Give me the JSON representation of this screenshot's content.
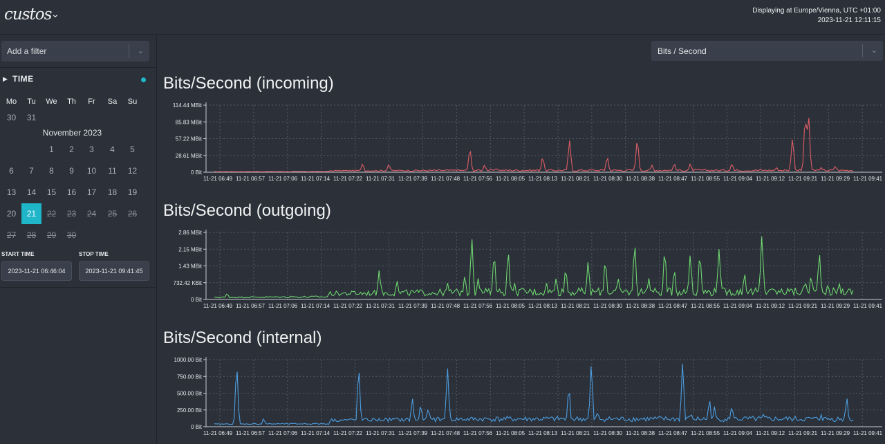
{
  "header": {
    "logo": "custos",
    "timezone": "Displaying at Europe/Vienna, UTC +01:00",
    "now": "2023-11-21 12:11:15"
  },
  "sidebar": {
    "filter_placeholder": "Add a filter",
    "time_label": "TIME",
    "calendar": {
      "weekdays": [
        "Mo",
        "Tu",
        "We",
        "Th",
        "Fr",
        "Sa",
        "Su"
      ],
      "prev_days": [
        "30",
        "31"
      ],
      "month": "November 2023",
      "weeks": [
        [
          "",
          "",
          "1",
          "2",
          "3",
          "4",
          "5"
        ],
        [
          "6",
          "7",
          "8",
          "9",
          "10",
          "11",
          "12"
        ],
        [
          "13",
          "14",
          "15",
          "16",
          "17",
          "18",
          "19"
        ],
        [
          "20",
          "21",
          "22",
          "23",
          "24",
          "25",
          "26"
        ],
        [
          "27",
          "28",
          "29",
          "30",
          "",
          "",
          ""
        ]
      ],
      "selected": "21",
      "future": [
        "22",
        "23",
        "24",
        "25",
        "26",
        "27",
        "28",
        "29",
        "30"
      ]
    },
    "start_label": "START TIME",
    "stop_label": "STOP TIME",
    "start_value": "2023-11-21 06:46:04",
    "stop_value": "2023-11-21 09:41:45"
  },
  "metric_select": {
    "value": "Bits / Second"
  },
  "chart_data": [
    {
      "type": "line",
      "title": "Bits/Second (incoming)",
      "color": "#e05e66",
      "x_ticks": [
        "11-21 06:49",
        "11-21 06:57",
        "11-21 07:06",
        "11-21 07:14",
        "11-21 07:22",
        "11-21 07:31",
        "11-21 07:39",
        "11-21 07:48",
        "11-21 07:56",
        "11-21 08:05",
        "11-21 08:13",
        "11-21 08:21",
        "11-21 08:30",
        "11-21 08:38",
        "11-21 08:47",
        "11-21 08:55",
        "11-21 09:04",
        "11-21 09:12",
        "11-21 09:21",
        "11-21 09:29",
        "11-21 09:41"
      ],
      "y_ticks": [
        "0 Bit",
        "28.61 MBit",
        "57.22 MBit",
        "85.83 MBit",
        "114.44 MBit"
      ],
      "ylim": [
        0,
        114.44
      ],
      "unit": "MBit",
      "baseline": 1.5,
      "noise": 3.5,
      "peaks": [
        [
          0.232,
          14
        ],
        [
          0.273,
          13
        ],
        [
          0.378,
          4
        ],
        [
          0.4,
          39
        ],
        [
          0.423,
          12
        ],
        [
          0.442,
          6
        ],
        [
          0.514,
          25
        ],
        [
          0.556,
          54
        ],
        [
          0.615,
          25
        ],
        [
          0.662,
          55
        ],
        [
          0.685,
          12
        ],
        [
          0.72,
          14
        ],
        [
          0.745,
          14
        ],
        [
          0.81,
          14
        ],
        [
          0.88,
          8
        ],
        [
          0.905,
          57
        ],
        [
          0.925,
          93
        ],
        [
          0.93,
          100
        ],
        [
          0.95,
          8
        ],
        [
          0.972,
          10
        ]
      ]
    },
    {
      "type": "line",
      "title": "Bits/Second (outgoing)",
      "color": "#6fd66f",
      "x_ticks": [
        "11-21 06:49",
        "11-21 06:57",
        "11-21 07:06",
        "11-21 07:14",
        "11-21 07:22",
        "11-21 07:31",
        "11-21 07:39",
        "11-21 07:48",
        "11-21 07:56",
        "11-21 08:05",
        "11-21 08:13",
        "11-21 08:21",
        "11-21 08:30",
        "11-21 08:38",
        "11-21 08:47",
        "11-21 08:55",
        "11-21 09:04",
        "11-21 09:12",
        "11-21 09:21",
        "11-21 09:29",
        "11-21 09:41"
      ],
      "y_ticks": [
        "0 Bit",
        "732.42 KBit",
        "1.43 MBit",
        "2.15 MBit",
        "2.86 MBit"
      ],
      "ylim": [
        0,
        2.86
      ],
      "unit": "MBit",
      "baseline": 0.15,
      "noise": 0.35,
      "peaks": [
        [
          0.02,
          0.25
        ],
        [
          0.12,
          0.15
        ],
        [
          0.18,
          0.25
        ],
        [
          0.22,
          0.35
        ],
        [
          0.258,
          1.25
        ],
        [
          0.286,
          0.8
        ],
        [
          0.365,
          0.7
        ],
        [
          0.392,
          1.0
        ],
        [
          0.403,
          2.6
        ],
        [
          0.413,
          0.9
        ],
        [
          0.438,
          1.9
        ],
        [
          0.46,
          2.0
        ],
        [
          0.47,
          0.7
        ],
        [
          0.52,
          0.7
        ],
        [
          0.535,
          0.9
        ],
        [
          0.55,
          1.3
        ],
        [
          0.585,
          1.6
        ],
        [
          0.612,
          1.65
        ],
        [
          0.632,
          0.9
        ],
        [
          0.658,
          2.35
        ],
        [
          0.68,
          0.9
        ],
        [
          0.705,
          2.05
        ],
        [
          0.72,
          1.25
        ],
        [
          0.745,
          1.9
        ],
        [
          0.76,
          1.9
        ],
        [
          0.79,
          2.15
        ],
        [
          0.83,
          1.1
        ],
        [
          0.857,
          2.7
        ],
        [
          0.87,
          0.5
        ],
        [
          0.898,
          0.5
        ],
        [
          0.925,
          0.75
        ],
        [
          0.934,
          1.0
        ],
        [
          0.947,
          1.95
        ],
        [
          0.96,
          0.6
        ],
        [
          0.978,
          0.7
        ]
      ]
    },
    {
      "type": "line",
      "title": "Bits/Second (internal)",
      "color": "#4d9ee0",
      "x_ticks": [
        "11-21 06:49",
        "11-21 06:57",
        "11-21 07:06",
        "11-21 07:14",
        "11-21 07:22",
        "11-21 07:31",
        "11-21 07:39",
        "11-21 07:48",
        "11-21 07:56",
        "11-21 08:05",
        "11-21 08:13",
        "11-21 08:21",
        "11-21 08:30",
        "11-21 08:38",
        "11-21 08:47",
        "11-21 08:55",
        "11-21 09:04",
        "11-21 09:12",
        "11-21 09:21",
        "11-21 09:29",
        "11-21 09:41"
      ],
      "y_ticks": [
        "0 Bit",
        "250.00 Bit",
        "500.00 Bit",
        "750.00 Bit",
        "1000.00 Bit"
      ],
      "ylim": [
        0,
        1000
      ],
      "unit": "Bit",
      "baseline": 75,
      "noise": 80,
      "peaks": [
        [
          0.035,
          890
        ],
        [
          0.077,
          120
        ],
        [
          0.226,
          860
        ],
        [
          0.31,
          420
        ],
        [
          0.323,
          320
        ],
        [
          0.335,
          270
        ],
        [
          0.365,
          870
        ],
        [
          0.555,
          570
        ],
        [
          0.59,
          930
        ],
        [
          0.6,
          220
        ],
        [
          0.733,
          950
        ],
        [
          0.746,
          200
        ],
        [
          0.775,
          400
        ],
        [
          0.783,
          300
        ],
        [
          0.81,
          300
        ],
        [
          0.86,
          200
        ],
        [
          0.95,
          180
        ],
        [
          0.99,
          430
        ]
      ]
    }
  ]
}
